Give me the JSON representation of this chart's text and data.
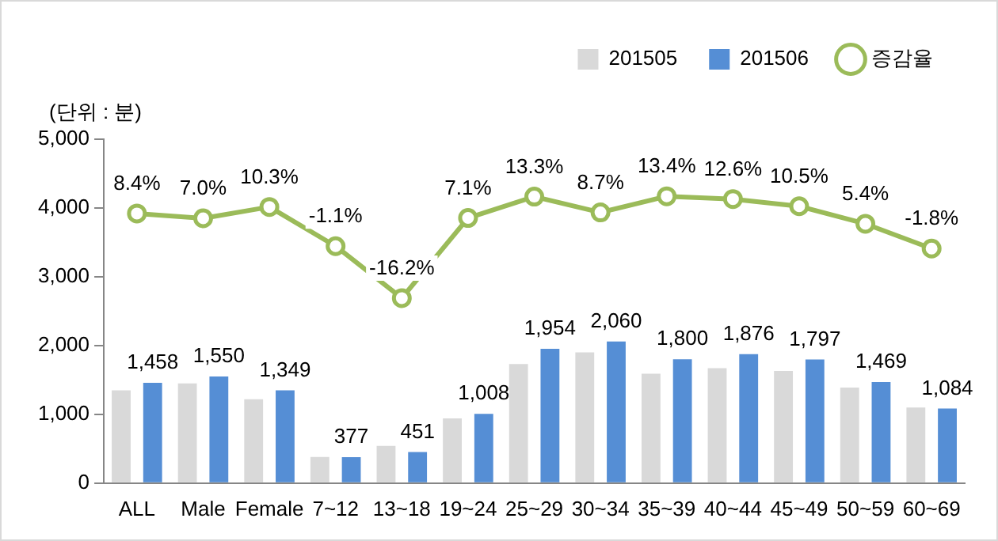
{
  "chart_data": {
    "type": "bar",
    "ylabel": "(단위 : 분)",
    "categories": [
      "ALL",
      "Male",
      "Female",
      "7~12",
      "13~18",
      "19~24",
      "25~29",
      "30~34",
      "35~39",
      "40~44",
      "45~49",
      "50~59",
      "60~69"
    ],
    "series": [
      {
        "name": "201505",
        "color": "#d9d9d9",
        "values": [
          1350,
          1450,
          1220,
          380,
          540,
          940,
          1730,
          1900,
          1590,
          1670,
          1630,
          1390,
          1100
        ]
      },
      {
        "name": "201506",
        "color": "#558ed5",
        "values": [
          1458,
          1550,
          1349,
          377,
          451,
          1008,
          1954,
          2060,
          1800,
          1876,
          1797,
          1469,
          1084
        ],
        "value_labels": [
          "1,458",
          "1,550",
          "1,349",
          "377",
          "451",
          "1,008",
          "1,954",
          "2,060",
          "1,800",
          "1,876",
          "1,797",
          "1,469",
          "1,084"
        ]
      },
      {
        "name": "증감율",
        "type": "line",
        "axis": "y2",
        "color": "#9bbb59",
        "values": [
          8.4,
          7.0,
          10.3,
          -1.1,
          -16.2,
          7.1,
          13.3,
          8.7,
          13.4,
          12.6,
          10.5,
          5.4,
          -1.8
        ],
        "value_labels": [
          "8.4%",
          "7.0%",
          "10.3%",
          "-1.1%",
          "-16.2%",
          "7.1%",
          "13.3%",
          "8.7%",
          "13.4%",
          "12.6%",
          "10.5%",
          "5.4%",
          "-1.8%"
        ]
      }
    ],
    "ylim": [
      0,
      5000
    ],
    "yticks": [
      0,
      {
        "value": 1000,
        "label": "1,000"
      },
      {
        "value": 2000,
        "label": "2,000"
      },
      {
        "value": 3000,
        "label": "3,000"
      },
      {
        "value": 4000,
        "label": "4,000"
      },
      {
        "value": 5000,
        "label": "5,000"
      }
    ],
    "y2lim": [
      -70,
      30
    ],
    "legend": "top right",
    "marker": "circle",
    "line_style": "solid",
    "grid": false
  }
}
